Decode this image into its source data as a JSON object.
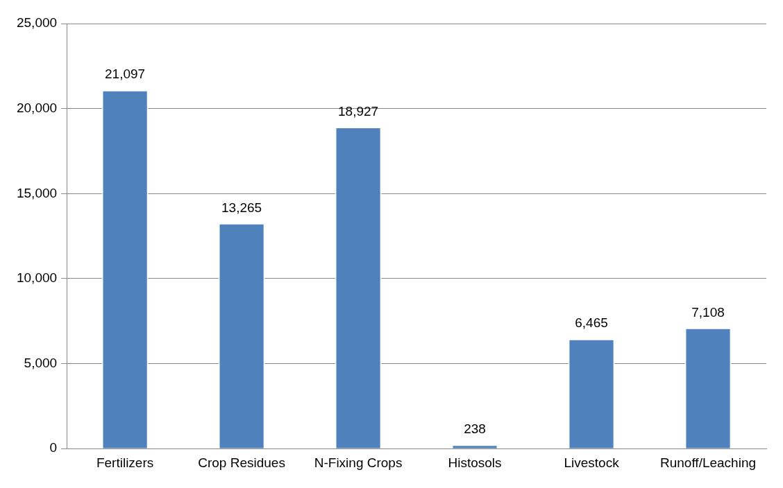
{
  "chart_data": {
    "type": "bar",
    "categories": [
      "Fertilizers",
      "Crop Residues",
      "N-Fixing Crops",
      "Histosols",
      "Livestock",
      "Runoff/Leaching"
    ],
    "values": [
      21097,
      13265,
      18927,
      238,
      6465,
      7108
    ],
    "value_labels": [
      "21,097",
      "13,265",
      "18,927",
      "238",
      "6,465",
      "7,108"
    ],
    "color": "#4f81bd",
    "ylim": [
      0,
      25000
    ],
    "yticks": [
      {
        "value": 0,
        "label": "0"
      },
      {
        "value": 5000,
        "label": "5,000"
      },
      {
        "value": 10000,
        "label": "10,000"
      },
      {
        "value": 15000,
        "label": "15,000"
      },
      {
        "value": 20000,
        "label": "20,000"
      },
      {
        "value": 25000,
        "label": "25,000"
      }
    ],
    "grid": "y",
    "legend": false
  }
}
